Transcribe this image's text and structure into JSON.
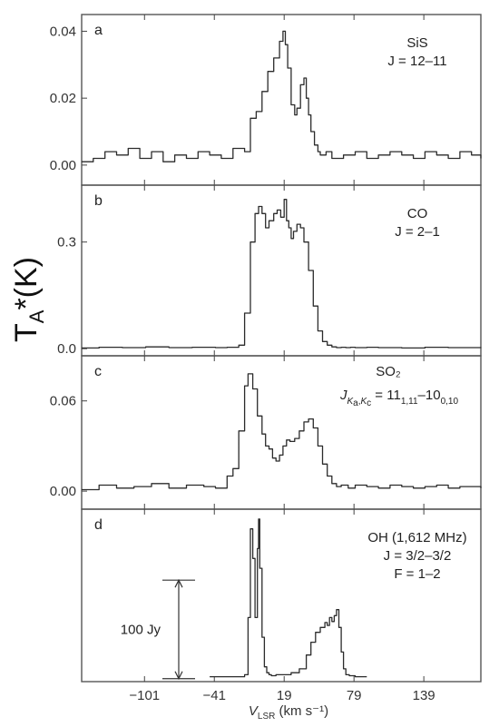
{
  "figure": {
    "ylabel_main": "T",
    "ylabel_sub": "A",
    "ylabel_rest": "*(K)",
    "xlabel_v": "V",
    "xlabel_sub": "LSR",
    "xlabel_units": " (km s⁻¹)"
  },
  "chart_data": [
    {
      "type": "line",
      "panel": "a",
      "annotation": [
        "SiS",
        "J = 12–11"
      ],
      "xlim": [
        -155,
        188
      ],
      "ylim": [
        -0.006,
        0.045
      ],
      "yticks": [
        "0.00",
        "0.02",
        "0.04"
      ],
      "ytick_values": [
        0.0,
        0.02,
        0.04
      ],
      "series": [
        {
          "x": [
            -155,
            -145,
            -135,
            -125,
            -115,
            -105,
            -95,
            -85,
            -75,
            -65,
            -55,
            -45,
            -35,
            -25,
            -15,
            -10,
            -5,
            0,
            5,
            10,
            15,
            18,
            20,
            22,
            25,
            28,
            30,
            33,
            36,
            38,
            40,
            42,
            45,
            48,
            50,
            55,
            60,
            70,
            80,
            90,
            100,
            110,
            120,
            130,
            140,
            150,
            160,
            170,
            180,
            188
          ],
          "y": [
            0.001,
            0.002,
            0.004,
            0.003,
            0.005,
            0.002,
            0.004,
            0.001,
            0.003,
            0.002,
            0.004,
            0.003,
            0.002,
            0.005,
            0.004,
            0.014,
            0.016,
            0.022,
            0.028,
            0.032,
            0.037,
            0.04,
            0.036,
            0.029,
            0.018,
            0.015,
            0.017,
            0.024,
            0.026,
            0.02,
            0.015,
            0.01,
            0.006,
            0.004,
            0.003,
            0.004,
            0.002,
            0.003,
            0.004,
            0.002,
            0.003,
            0.004,
            0.003,
            0.002,
            0.004,
            0.003,
            0.002,
            0.004,
            0.003,
            0.002
          ]
        }
      ]
    },
    {
      "type": "line",
      "panel": "b",
      "annotation": [
        "CO",
        "J = 2–1"
      ],
      "xlim": [
        -155,
        188
      ],
      "ylim": [
        -0.02,
        0.46
      ],
      "yticks": [
        "0.0",
        "0.3"
      ],
      "ytick_values": [
        0.0,
        0.3
      ],
      "series": [
        {
          "x": [
            -155,
            -140,
            -120,
            -100,
            -80,
            -60,
            -40,
            -30,
            -20,
            -15,
            -10,
            -6,
            -3,
            0,
            3,
            6,
            10,
            13,
            16,
            19,
            21,
            23,
            25,
            27,
            30,
            33,
            36,
            40,
            44,
            48,
            52,
            56,
            60,
            64,
            68,
            72,
            76,
            80,
            90,
            100,
            120,
            140,
            160,
            188
          ],
          "y": [
            0.002,
            0.004,
            0.003,
            0.005,
            0.003,
            0.004,
            0.003,
            0.004,
            0.01,
            0.1,
            0.3,
            0.38,
            0.4,
            0.38,
            0.34,
            0.36,
            0.38,
            0.39,
            0.37,
            0.42,
            0.36,
            0.34,
            0.31,
            0.33,
            0.35,
            0.34,
            0.3,
            0.22,
            0.12,
            0.05,
            0.02,
            0.01,
            0.005,
            0.003,
            0.004,
            0.003,
            0.004,
            0.003,
            0.004,
            0.003,
            0.002,
            0.004,
            0.003,
            0.002
          ]
        }
      ]
    },
    {
      "type": "line",
      "panel": "c",
      "annotation": [
        "SO₂",
        "Jₖₐ,ₖᶜ = 11₁,₁₁–10₀,₁₀"
      ],
      "annotation_line2_parts": {
        "base": "J",
        "sub1": "K",
        "sub1b": "a",
        "sub2": "K",
        "sub2b": "c",
        "mid": " = 11",
        "sub3": "1,11",
        "dash": "–10",
        "sub4": "0,10"
      },
      "xlim": [
        -155,
        188
      ],
      "ylim": [
        -0.012,
        0.09
      ],
      "yticks": [
        "0.00",
        "0.06"
      ],
      "ytick_values": [
        0.0,
        0.06
      ],
      "series": [
        {
          "x": [
            -155,
            -140,
            -125,
            -110,
            -95,
            -80,
            -65,
            -50,
            -40,
            -30,
            -25,
            -20,
            -15,
            -12,
            -8,
            -4,
            0,
            3,
            6,
            9,
            12,
            15,
            18,
            21,
            24,
            28,
            32,
            36,
            40,
            44,
            48,
            52,
            56,
            60,
            64,
            68,
            74,
            80,
            90,
            100,
            110,
            120,
            130,
            140,
            150,
            160,
            170,
            188
          ],
          "y": [
            0.001,
            0.004,
            0.002,
            0.003,
            0.005,
            0.002,
            0.004,
            0.003,
            0.002,
            0.01,
            0.015,
            0.04,
            0.07,
            0.078,
            0.068,
            0.05,
            0.038,
            0.03,
            0.028,
            0.022,
            0.02,
            0.024,
            0.03,
            0.034,
            0.033,
            0.035,
            0.04,
            0.046,
            0.048,
            0.042,
            0.03,
            0.018,
            0.01,
            0.005,
            0.003,
            0.004,
            0.002,
            0.004,
            0.003,
            0.002,
            0.004,
            0.003,
            0.002,
            0.003,
            0.004,
            0.002,
            0.003,
            0.002
          ]
        }
      ]
    },
    {
      "type": "line",
      "panel": "d",
      "annotation": [
        "OH (1,612 MHz)",
        "J = 3/2–3/2",
        "F = 1–2"
      ],
      "scalebar_label": "100 Jy",
      "xlim": [
        -155,
        188
      ],
      "ylim": [
        -5,
        170
      ],
      "yticks": [],
      "xticks": [
        "−101",
        "−41",
        "19",
        "79",
        "139"
      ],
      "xtick_values": [
        -101,
        -41,
        19,
        79,
        139
      ],
      "series": [
        {
          "x": [
            -45,
            -30,
            -20,
            -15,
            -12,
            -10,
            -8,
            -6,
            -4,
            -3,
            -2,
            0,
            2,
            4,
            6,
            8,
            12,
            18,
            25,
            32,
            38,
            42,
            46,
            50,
            54,
            56,
            58,
            60,
            62,
            64,
            66,
            68,
            70,
            72,
            75,
            80,
            90
          ],
          "y": [
            0,
            0,
            0,
            2,
            60,
            150,
            120,
            60,
            130,
            160,
            110,
            40,
            10,
            4,
            2,
            1,
            2,
            2,
            4,
            8,
            22,
            35,
            45,
            50,
            55,
            52,
            60,
            56,
            62,
            68,
            50,
            25,
            8,
            2,
            1,
            0,
            0
          ]
        }
      ]
    }
  ]
}
